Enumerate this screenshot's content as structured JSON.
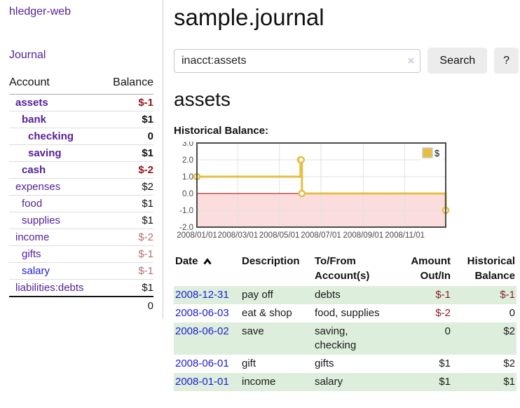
{
  "sidebar": {
    "brand": "hledger-web",
    "journal_link": "Journal",
    "accounts": {
      "headers": {
        "account": "Account",
        "balance": "Balance"
      },
      "rows": [
        {
          "label": "assets",
          "depth": 1,
          "bold": true,
          "balance": "$-1",
          "balance_class": "neg-strong",
          "label_class": ""
        },
        {
          "label": "bank",
          "depth": 2,
          "bold": true,
          "balance": "$1",
          "balance_class": "",
          "label_class": ""
        },
        {
          "label": "checking",
          "depth": 3,
          "bold": true,
          "balance": "0",
          "balance_class": "",
          "label_class": ""
        },
        {
          "label": "saving",
          "depth": 3,
          "bold": true,
          "balance": "$1",
          "balance_class": "",
          "label_class": ""
        },
        {
          "label": "cash",
          "depth": 2,
          "bold": true,
          "balance": "$-2",
          "balance_class": "neg-strong",
          "label_class": ""
        },
        {
          "label": "expenses",
          "depth": 1,
          "bold": false,
          "balance": "$2",
          "balance_class": "",
          "label_class": ""
        },
        {
          "label": "food",
          "depth": 2,
          "bold": false,
          "balance": "$1",
          "balance_class": "",
          "label_class": ""
        },
        {
          "label": "supplies",
          "depth": 2,
          "bold": false,
          "balance": "$1",
          "balance_class": "",
          "label_class": ""
        },
        {
          "label": "income",
          "depth": 1,
          "bold": false,
          "balance": "$-2",
          "balance_class": "neg-soft",
          "label_class": ""
        },
        {
          "label": "gifts",
          "depth": 2,
          "bold": false,
          "balance": "$-1",
          "balance_class": "neg-soft",
          "label_class": ""
        },
        {
          "label": "salary",
          "depth": 2,
          "bold": false,
          "balance": "$-1",
          "balance_class": "neg-soft",
          "label_class": "blue"
        },
        {
          "label": "liabilities:debts",
          "depth": 1,
          "bold": false,
          "balance": "$1",
          "balance_class": "",
          "label_class": ""
        }
      ],
      "total": "0"
    }
  },
  "main": {
    "title": "sample.journal",
    "search": {
      "value": "inacct:assets",
      "clear_icon": "×",
      "button": "Search",
      "help": "?"
    },
    "heading": "assets",
    "chart_title": "Historical Balance:",
    "register": {
      "headers": [
        {
          "line1": "Date",
          "line2": "",
          "align": "left",
          "sort": "asc"
        },
        {
          "line1": "Description",
          "line2": "",
          "align": "left",
          "sort": ""
        },
        {
          "line1": "To/From",
          "line2": "Account(s)",
          "align": "left",
          "sort": ""
        },
        {
          "line1": "Amount",
          "line2": "Out/In",
          "align": "right",
          "sort": ""
        },
        {
          "line1": "Historical",
          "line2": "Balance",
          "align": "right",
          "sort": ""
        }
      ],
      "rows": [
        {
          "date": "2008-12-31",
          "description": "pay off",
          "accounts": [
            "debts"
          ],
          "amount": "$-1",
          "amount_negative": true,
          "balance": "$-1",
          "balance_negative": true
        },
        {
          "date": "2008-06-03",
          "description": "eat & shop",
          "accounts": [
            "food",
            "supplies"
          ],
          "amount": "$-2",
          "amount_negative": true,
          "balance": "0",
          "balance_negative": false
        },
        {
          "date": "2008-06-02",
          "description": "save",
          "accounts": [
            "saving",
            "checking"
          ],
          "amount": "0",
          "amount_negative": false,
          "balance": "$2",
          "balance_negative": false
        },
        {
          "date": "2008-06-01",
          "description": "gift",
          "accounts": [
            "gifts"
          ],
          "amount": "$1",
          "amount_negative": false,
          "balance": "$2",
          "balance_negative": false
        },
        {
          "date": "2008-01-01",
          "description": "income",
          "accounts": [
            "salary"
          ],
          "amount": "$1",
          "amount_negative": false,
          "balance": "$1",
          "balance_negative": false
        }
      ]
    }
  },
  "chart_data": {
    "type": "line",
    "style": "step",
    "title": "Historical Balance:",
    "series": [
      {
        "name": "$",
        "color": "#e5bf42",
        "points": [
          [
            "2008-01-01",
            1
          ],
          [
            "2008-06-01",
            2
          ],
          [
            "2008-06-02",
            2
          ],
          [
            "2008-06-03",
            0
          ],
          [
            "2008-12-31",
            -1
          ]
        ]
      }
    ],
    "x_min": "2008-01-01",
    "x_max": "2008-12-31",
    "x_tick_dates": [
      "2008-01-01",
      "2008-03-01",
      "2008-05-01",
      "2008-07-01",
      "2008-09-01",
      "2008-11-01"
    ],
    "x_tick_labels": [
      "2008/01/01",
      "2008/03/01",
      "2008/05/01",
      "2008/07/01",
      "2008/09/01",
      "2008/11/01"
    ],
    "y_ticks": [
      "3.0",
      "2.0",
      "1.0",
      "0.0",
      "-1.0",
      "-2.0"
    ],
    "ylim": [
      -2,
      3
    ],
    "grid": true,
    "legend": {
      "label": "$",
      "position": "top-right"
    },
    "colors": {
      "grid": "#e2e2e2",
      "border": "#4a4a4a",
      "zero_line": "#a00000",
      "below_zero_fill": "#fbdddd",
      "tick_text": "#484848",
      "marker_fill": "#ffffff",
      "legend_swatch_border": "#cccccc"
    }
  },
  "colors": {
    "accent_purple": "#552299",
    "link_blue": "#1c1cd6",
    "negative_strong": "#941520",
    "negative_soft": "#b76f6f",
    "row_stripe_green": "#ddeedd",
    "button_gray": "#ececec",
    "chart_gold": "#e5bf42"
  }
}
